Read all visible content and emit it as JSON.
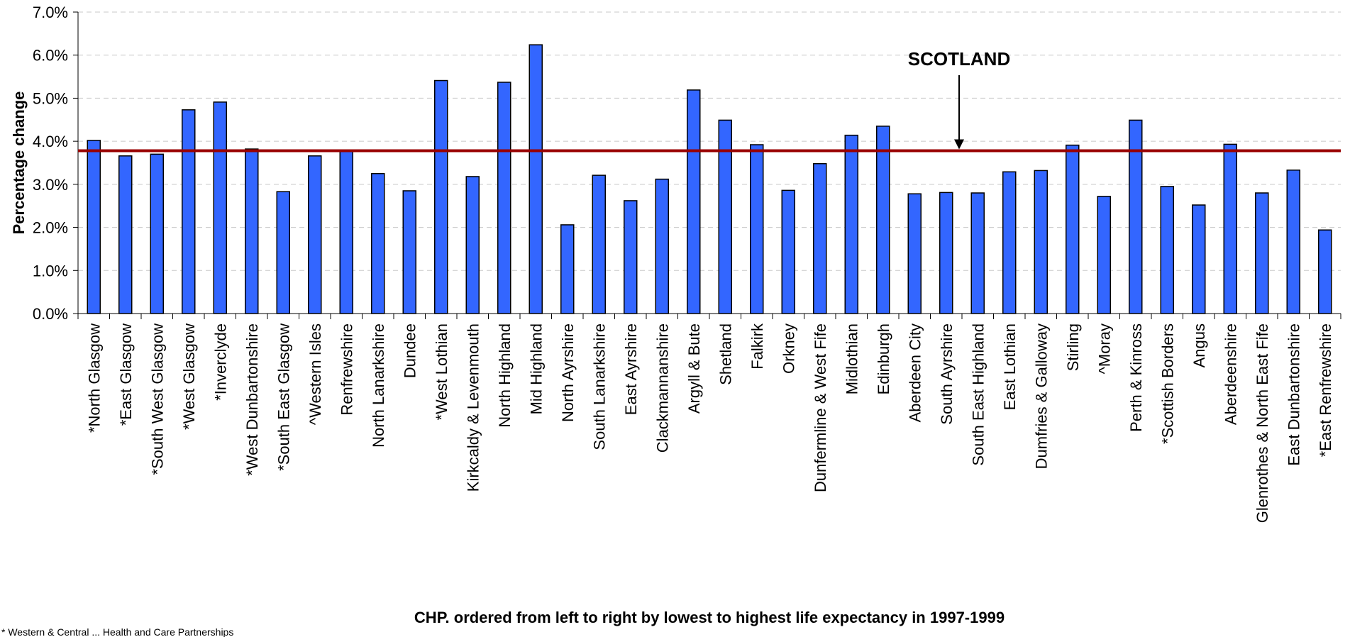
{
  "chart_data": {
    "type": "bar",
    "xlabel": "CHP. ordered from left to right by lowest to highest life expectancy in 1997-1999",
    "ylabel": "Percentage change",
    "ylim": [
      0,
      7.0
    ],
    "ytick_labels": [
      "0.0%",
      "1.0%",
      "2.0%",
      "3.0%",
      "4.0%",
      "5.0%",
      "6.0%",
      "7.0%"
    ],
    "grid": true,
    "bar_color": "#3366ff",
    "reference_line": {
      "label": "SCOTLAND",
      "value": 3.78,
      "color": "#990000"
    },
    "categories": [
      "*North Glasgow",
      "*East Glasgow",
      "*South West Glasgow",
      "*West Glasgow",
      "*Inverclyde",
      "*West Dunbartonshire",
      "*South East Glasgow",
      "^Western Isles",
      "Renfrewshire",
      "North Lanarkshire",
      "Dundee",
      "*West Lothian",
      "Kirkcaldy & Levenmouth",
      "North Highland",
      "Mid Highland",
      "North Ayrshire",
      "South Lanarkshire",
      "East Ayrshire",
      "Clackmannanshire",
      "Argyll & Bute",
      "Shetland",
      "Falkirk",
      "Orkney",
      "Dunfermline & West Fife",
      "Midlothian",
      "Edinburgh",
      "Aberdeen City",
      "South Ayrshire",
      "South East Highland",
      "East Lothian",
      "Dumfries & Galloway",
      "Stirling",
      "^Moray",
      "Perth & Kinross",
      "*Scottish Borders",
      "Angus",
      "Aberdeenshire",
      "Glenrothes & North East Fife",
      "East Dunbartonshire",
      "*East Renfrewshire"
    ],
    "values": [
      4.02,
      3.66,
      3.7,
      4.73,
      4.91,
      3.82,
      2.83,
      3.66,
      3.8,
      3.25,
      2.85,
      5.41,
      3.18,
      5.37,
      6.24,
      2.06,
      3.21,
      2.62,
      3.12,
      5.19,
      4.49,
      3.92,
      2.86,
      3.48,
      4.14,
      4.35,
      2.78,
      2.81,
      2.8,
      3.29,
      3.32,
      3.91,
      2.72,
      4.49,
      2.95,
      2.52,
      3.93,
      2.8,
      3.33,
      1.94
    ]
  },
  "footnote": "* Western & Central ... Health and Care Partnerships"
}
